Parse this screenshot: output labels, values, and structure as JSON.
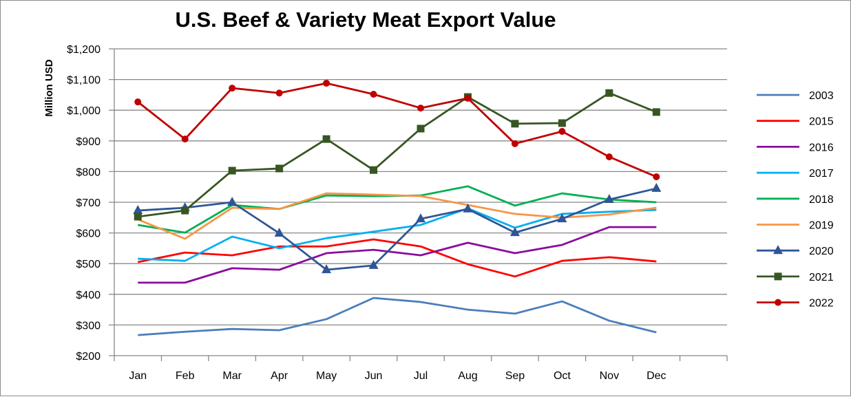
{
  "chart_data": {
    "type": "line",
    "title": "U.S. Beef & Variety Meat Export Value",
    "ylabel": "Million USD",
    "xlabel": "",
    "categories": [
      "Jan",
      "Feb",
      "Mar",
      "Apr",
      "May",
      "Jun",
      "Jul",
      "Aug",
      "Sep",
      "Oct",
      "Nov",
      "Dec"
    ],
    "ylim": [
      200,
      1200
    ],
    "yticks": [
      200,
      300,
      400,
      500,
      600,
      700,
      800,
      900,
      1000,
      1100,
      1200
    ],
    "ytick_labels": [
      "$200",
      "$300",
      "$400",
      "$500",
      "$600",
      "$700",
      "$800",
      "$900",
      "$1,000",
      "$1,100",
      "$1,200"
    ],
    "grid": "horizontal",
    "legend_position": "right",
    "series": [
      {
        "name": "2003",
        "color": "#4a7ebb",
        "marker": "none",
        "values": [
          267,
          278,
          287,
          283,
          319,
          388,
          375,
          350,
          337,
          377,
          314,
          276
        ]
      },
      {
        "name": "2015",
        "color": "#ff0000",
        "marker": "none",
        "values": [
          505,
          536,
          527,
          556,
          556,
          579,
          556,
          498,
          458,
          509,
          521,
          507
        ]
      },
      {
        "name": "2016",
        "color": "#8b0a9e",
        "marker": "none",
        "values": [
          438,
          438,
          485,
          480,
          534,
          545,
          527,
          568,
          534,
          561,
          619,
          619
        ]
      },
      {
        "name": "2017",
        "color": "#00b0f0",
        "marker": "none",
        "values": [
          516,
          509,
          588,
          550,
          583,
          604,
          626,
          680,
          617,
          662,
          669,
          675
        ]
      },
      {
        "name": "2018",
        "color": "#00b050",
        "marker": "none",
        "values": [
          626,
          601,
          691,
          678,
          722,
          720,
          722,
          752,
          689,
          729,
          709,
          700
        ]
      },
      {
        "name": "2019",
        "color": "#f79646",
        "marker": "none",
        "values": [
          644,
          581,
          682,
          678,
          729,
          725,
          720,
          691,
          662,
          650,
          660,
          682
        ]
      },
      {
        "name": "2020",
        "color": "#2f5597",
        "marker": "triangle",
        "values": [
          673,
          682,
          700,
          599,
          480,
          494,
          646,
          678,
          601,
          646,
          709,
          745
        ]
      },
      {
        "name": "2021",
        "color": "#375623",
        "marker": "square",
        "values": [
          653,
          673,
          803,
          810,
          906,
          805,
          940,
          1043,
          956,
          958,
          1056,
          994
        ]
      },
      {
        "name": "2022",
        "color": "#c00000",
        "marker": "circle",
        "values": [
          1027,
          906,
          1072,
          1056,
          1088,
          1052,
          1007,
          1039,
          891,
          931,
          848,
          783
        ]
      }
    ]
  }
}
